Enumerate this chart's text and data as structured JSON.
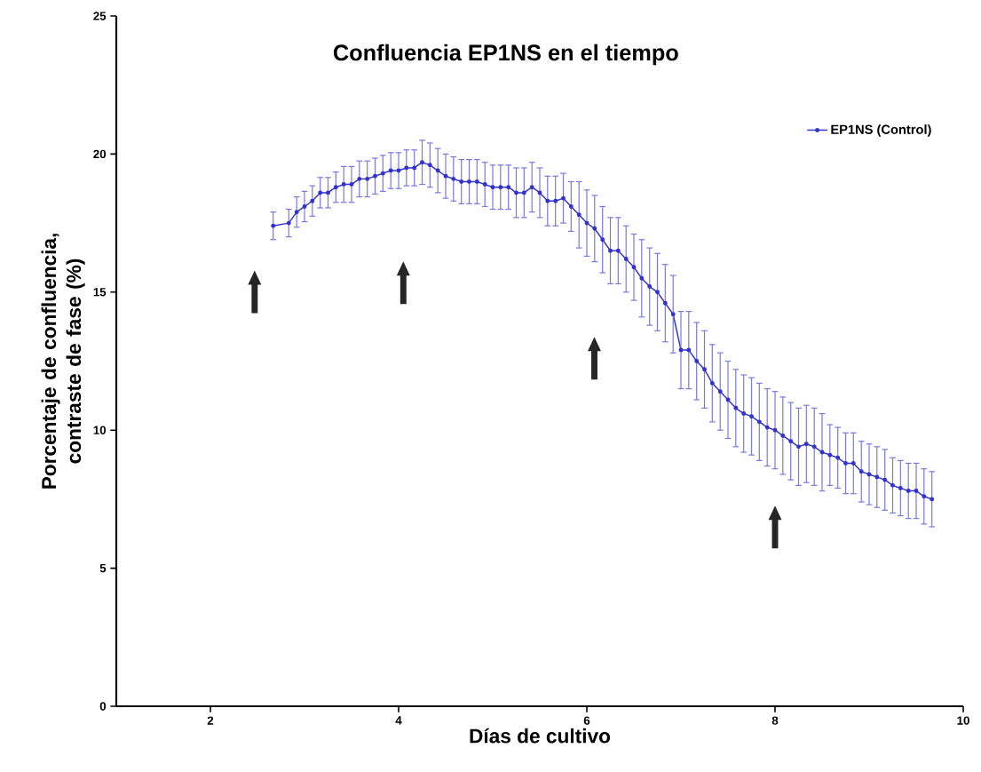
{
  "chart_data": {
    "type": "line",
    "title": "Confluencia EP1NS en el tiempo",
    "xlabel": "Días de cultivo",
    "ylabel": "Porcentaje de confluencia, contraste de fase (%)",
    "x": [
      2.667,
      2.833,
      2.917,
      3.0,
      3.083,
      3.167,
      3.25,
      3.333,
      3.417,
      3.5,
      3.583,
      3.667,
      3.75,
      3.833,
      3.917,
      4.0,
      4.083,
      4.167,
      4.25,
      4.333,
      4.417,
      4.5,
      4.583,
      4.667,
      4.75,
      4.833,
      4.917,
      5.0,
      5.083,
      5.167,
      5.25,
      5.333,
      5.417,
      5.5,
      5.583,
      5.667,
      5.75,
      5.833,
      5.917,
      6.0,
      6.083,
      6.167,
      6.25,
      6.333,
      6.417,
      6.5,
      6.583,
      6.667,
      6.75,
      6.833,
      6.917,
      7.0,
      7.083,
      7.167,
      7.25,
      7.333,
      7.417,
      7.5,
      7.583,
      7.667,
      7.75,
      7.833,
      7.917,
      8.0,
      8.083,
      8.167,
      8.25,
      8.333,
      8.417,
      8.5,
      8.583,
      8.667,
      8.75,
      8.833,
      8.917,
      9.0,
      9.083,
      9.167,
      9.25,
      9.333,
      9.417,
      9.5,
      9.583,
      9.667
    ],
    "series": [
      {
        "name": "EP1NS (Control)",
        "color": "#3333cc",
        "values": [
          17.4,
          17.5,
          17.9,
          18.1,
          18.3,
          18.6,
          18.6,
          18.8,
          18.9,
          18.9,
          19.1,
          19.1,
          19.2,
          19.3,
          19.4,
          19.4,
          19.5,
          19.5,
          19.7,
          19.6,
          19.4,
          19.2,
          19.1,
          19.0,
          19.0,
          19.0,
          18.9,
          18.8,
          18.8,
          18.8,
          18.6,
          18.6,
          18.8,
          18.6,
          18.3,
          18.3,
          18.4,
          18.1,
          17.8,
          17.5,
          17.3,
          16.9,
          16.5,
          16.5,
          16.2,
          15.9,
          15.5,
          15.2,
          15.0,
          14.6,
          14.2,
          12.9,
          12.9,
          12.5,
          12.2,
          11.7,
          11.4,
          11.1,
          10.8,
          10.6,
          10.5,
          10.3,
          10.1,
          10.0,
          9.8,
          9.6,
          9.4,
          9.5,
          9.4,
          9.2,
          9.1,
          9.0,
          8.8,
          8.8,
          8.5,
          8.4,
          8.3,
          8.2,
          8.0,
          7.9,
          7.8,
          7.8,
          7.6,
          7.5
        ],
        "errors": [
          0.5,
          0.5,
          0.55,
          0.55,
          0.55,
          0.55,
          0.55,
          0.55,
          0.65,
          0.65,
          0.65,
          0.65,
          0.65,
          0.65,
          0.65,
          0.65,
          0.65,
          0.65,
          0.8,
          0.8,
          0.8,
          0.8,
          0.8,
          0.8,
          0.8,
          0.8,
          0.8,
          0.8,
          0.8,
          0.8,
          0.9,
          0.9,
          0.9,
          0.9,
          0.9,
          0.9,
          0.9,
          0.9,
          1.2,
          1.2,
          1.2,
          1.2,
          1.2,
          1.2,
          1.2,
          1.2,
          1.4,
          1.4,
          1.4,
          1.4,
          1.4,
          1.4,
          1.4,
          1.4,
          1.4,
          1.4,
          1.4,
          1.4,
          1.4,
          1.4,
          1.4,
          1.4,
          1.4,
          1.4,
          1.4,
          1.4,
          1.4,
          1.4,
          1.4,
          1.4,
          1.1,
          1.1,
          1.1,
          1.1,
          1.1,
          1.1,
          1.1,
          1.1,
          1.0,
          1.0,
          1.0,
          1.0,
          1.0,
          1.0
        ]
      }
    ],
    "xlim": [
      1,
      10
    ],
    "ylim": [
      0,
      25
    ],
    "xticks": [
      2,
      4,
      6,
      8,
      10
    ],
    "yticks": [
      0,
      5,
      10,
      15,
      20,
      25
    ],
    "marker": "circle",
    "legend": "top right"
  }
}
